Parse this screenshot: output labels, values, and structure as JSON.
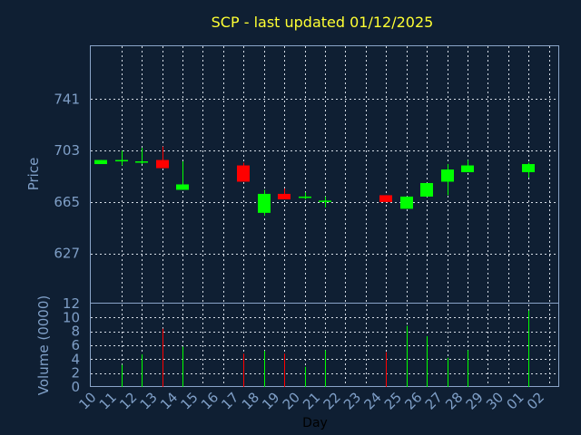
{
  "chart_data": {
    "type": "candlestick",
    "title": "SCP - last updated 01/12/2025",
    "xlabel": "Day",
    "price_panel": {
      "ylabel": "Price",
      "ylim": [
        590,
        780
      ],
      "yticks": [
        627,
        665,
        703,
        741
      ],
      "grid": true
    },
    "volume_panel": {
      "ylabel": "Volume (0000)",
      "ylim": [
        0,
        12
      ],
      "yticks": [
        0,
        2,
        4,
        6,
        8,
        10,
        12
      ],
      "grid": true
    },
    "x_ticks": [
      "10",
      "11",
      "12",
      "13",
      "14",
      "15",
      "16",
      "17",
      "18",
      "19",
      "20",
      "21",
      "22",
      "23",
      "24",
      "25",
      "26",
      "27",
      "28",
      "29",
      "30",
      "01",
      "02"
    ],
    "candles": [
      {
        "day": "10",
        "open": 693,
        "close": 696,
        "high": 696,
        "low": 693,
        "volume": 0
      },
      {
        "day": "11",
        "open": 695,
        "close": 696,
        "high": 703,
        "low": 692,
        "volume": 3.2
      },
      {
        "day": "12",
        "open": 694,
        "close": 695,
        "high": 705,
        "low": 693,
        "volume": 4.7
      },
      {
        "day": "13",
        "open": 696,
        "close": 690,
        "high": 706,
        "low": 690,
        "volume": 8.4
      },
      {
        "day": "14",
        "open": 674,
        "close": 678,
        "high": 695,
        "low": 674,
        "volume": 5.8
      },
      {
        "day": "17",
        "open": 692,
        "close": 680,
        "high": 694,
        "low": 680,
        "volume": 4.8
      },
      {
        "day": "18",
        "open": 657,
        "close": 671,
        "high": 674,
        "low": 655,
        "volume": 5.2
      },
      {
        "day": "19",
        "open": 671,
        "close": 667,
        "high": 675,
        "low": 667,
        "volume": 4.8
      },
      {
        "day": "20",
        "open": 668,
        "close": 669,
        "high": 672,
        "low": 667,
        "volume": 2.9
      },
      {
        "day": "21",
        "open": 665,
        "close": 666,
        "high": 669,
        "low": 661,
        "volume": 5.3
      },
      {
        "day": "24",
        "open": 670,
        "close": 665,
        "high": 670,
        "low": 665,
        "volume": 5.0
      },
      {
        "day": "25",
        "open": 660,
        "close": 669,
        "high": 669,
        "low": 660,
        "volume": 8.8
      },
      {
        "day": "26",
        "open": 669,
        "close": 679,
        "high": 679,
        "low": 669,
        "volume": 7.3
      },
      {
        "day": "27",
        "open": 680,
        "close": 689,
        "high": 693,
        "low": 670,
        "volume": 4.2
      },
      {
        "day": "28",
        "open": 687,
        "close": 692,
        "high": 696,
        "low": 687,
        "volume": 5.3
      },
      {
        "day": "01",
        "open": 687,
        "close": 693,
        "high": 694,
        "low": 683,
        "volume": 11.0
      }
    ],
    "colors": {
      "background": "#0f1f33",
      "up": "#00ff00",
      "down": "#ff0000",
      "title": "#ffff33",
      "axis_text": "#7f9fc7",
      "frame": "#8aa4c8",
      "grid": "#d6dde6"
    }
  }
}
